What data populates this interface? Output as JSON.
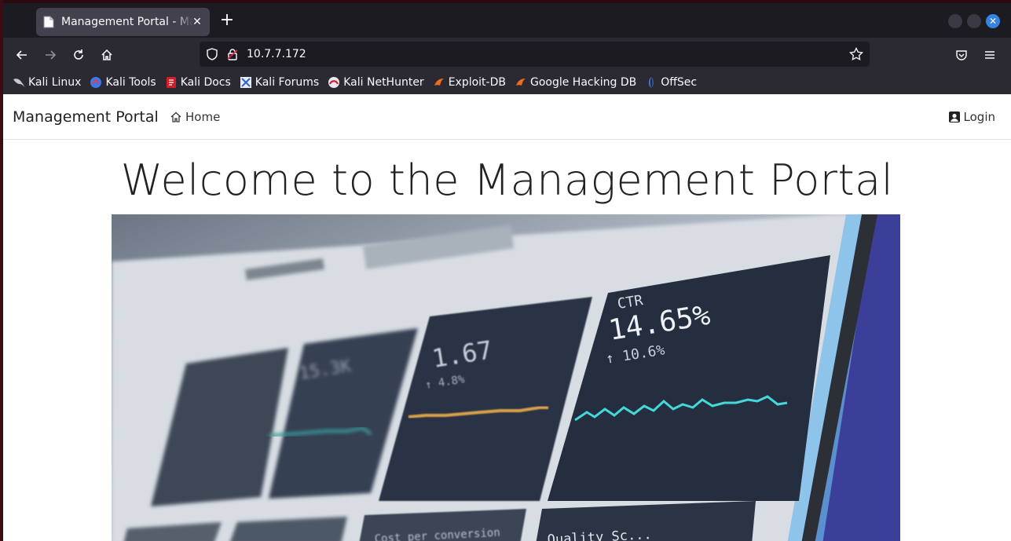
{
  "browser": {
    "tab_title": "Management Portal - Management Portal",
    "new_tab_symbol": "+",
    "url": "10.7.7.172",
    "bookmarks": [
      {
        "label": "Kali Linux",
        "icon": "kali-dragon-icon"
      },
      {
        "label": "Kali Tools",
        "icon": "kali-tools-icon"
      },
      {
        "label": "Kali Docs",
        "icon": "kali-docs-icon"
      },
      {
        "label": "Kali Forums",
        "icon": "kali-forums-icon"
      },
      {
        "label": "Kali NetHunter",
        "icon": "nethunter-icon"
      },
      {
        "label": "Exploit-DB",
        "icon": "exploit-db-icon"
      },
      {
        "label": "Google Hacking DB",
        "icon": "ghdb-icon"
      },
      {
        "label": "OffSec",
        "icon": "offsec-icon"
      }
    ]
  },
  "site": {
    "brand": "Management Portal",
    "nav_home": "Home",
    "nav_login": "Login",
    "hero_title": "Welcome to the Management Portal"
  },
  "hero_image": {
    "description_labels": {
      "ctr_label": "CTR",
      "ctr_value": "14.65%",
      "ctr_delta": "↑ 10.6%",
      "panel2_value": "1.67",
      "panel2_delta": "↑ 4.8%",
      "panel1_value": "15.3K",
      "bottom_left": "Cost per conversion",
      "bottom_right": "Quality Sc..."
    }
  },
  "colors": {
    "browser_bg": "#1c1b22",
    "toolbar_bg": "#2b2a33",
    "tab_active": "#42414d",
    "accent_close": "#3584e4"
  }
}
